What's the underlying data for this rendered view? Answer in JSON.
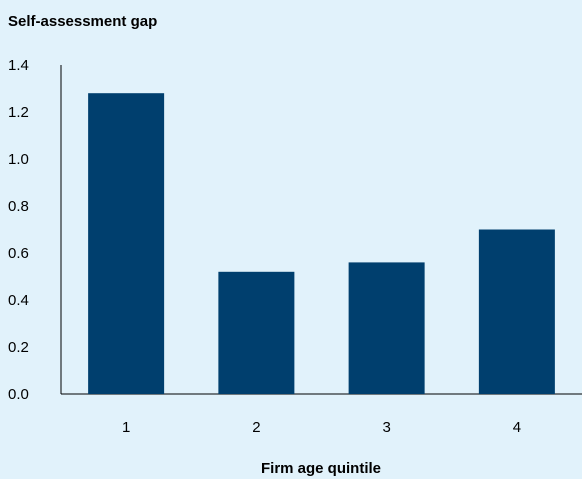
{
  "chart_data": {
    "type": "bar",
    "title": "",
    "ylabel": "Self-assessment gap",
    "xlabel": "Firm age quintile",
    "categories": [
      "1",
      "2",
      "3",
      "4"
    ],
    "values": [
      1.28,
      0.52,
      0.56,
      0.7
    ],
    "ylim": [
      0.0,
      1.4
    ],
    "yticks": [
      "0.0",
      "0.2",
      "0.4",
      "0.6",
      "0.8",
      "1.0",
      "1.2",
      "1.4"
    ],
    "grid": false,
    "legend": "none"
  },
  "colors": {
    "background": "#e1f2fb",
    "bar": "#003f6e",
    "axis": "#000000"
  }
}
